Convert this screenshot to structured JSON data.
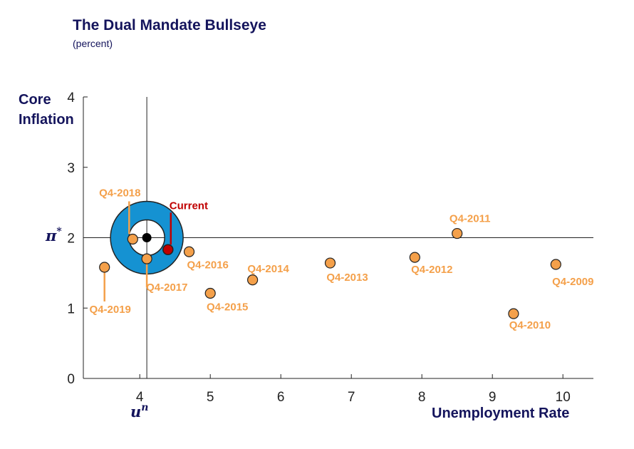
{
  "chart_data": {
    "type": "scatter",
    "title": "The Dual Mandate Bullseye",
    "subtitle": "(percent)",
    "xlabel": "Unemployment Rate",
    "ylabel": "Core Inflation",
    "xlim": [
      3.2,
      10.5
    ],
    "ylim": [
      0,
      4
    ],
    "xticks": [
      "4",
      "5",
      "6",
      "7",
      "8",
      "9",
      "10"
    ],
    "yticks": [
      "0",
      "1",
      "2",
      "3",
      "4"
    ],
    "target_x_label": "u",
    "target_x_sup": "n",
    "target_y_label": "π",
    "target_y_sup": "*",
    "target": {
      "x": 4.1,
      "y": 2.0
    },
    "points": [
      {
        "label": "Q4-2009",
        "x": 9.9,
        "y": 1.62
      },
      {
        "label": "Q4-2010",
        "x": 9.3,
        "y": 0.92
      },
      {
        "label": "Q4-2011",
        "x": 8.5,
        "y": 2.06
      },
      {
        "label": "Q4-2012",
        "x": 7.9,
        "y": 1.72
      },
      {
        "label": "Q4-2013",
        "x": 6.7,
        "y": 1.64
      },
      {
        "label": "Q4-2014",
        "x": 5.6,
        "y": 1.4
      },
      {
        "label": "Q4-2015",
        "x": 5.0,
        "y": 1.21
      },
      {
        "label": "Q4-2016",
        "x": 4.7,
        "y": 1.8
      },
      {
        "label": "Q4-2017",
        "x": 4.1,
        "y": 1.7
      },
      {
        "label": "Q4-2018",
        "x": 3.9,
        "y": 1.98
      },
      {
        "label": "Q4-2019",
        "x": 3.5,
        "y": 1.58
      }
    ],
    "current": {
      "label": "Current",
      "x": 4.4,
      "y": 1.83
    },
    "colors": {
      "points": "#f4a04a",
      "point_edge": "#222222",
      "current": "#c00000",
      "bullseye": "#1592d2",
      "labels": "#14145c"
    }
  }
}
